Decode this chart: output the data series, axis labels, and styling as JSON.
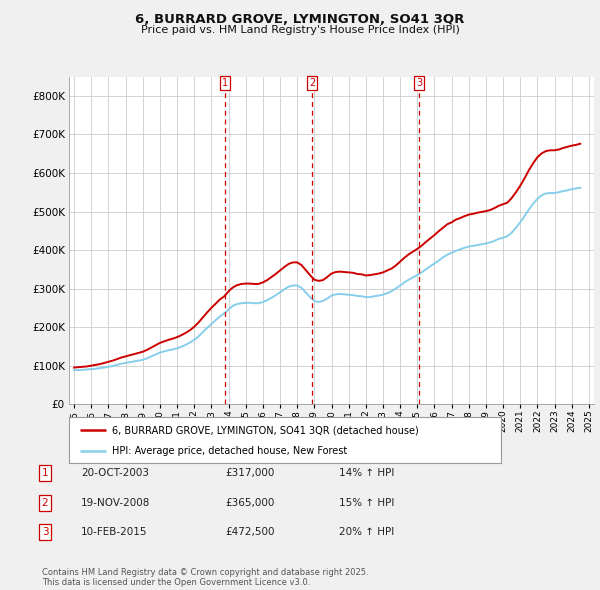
{
  "title": "6, BURRARD GROVE, LYMINGTON, SO41 3QR",
  "subtitle": "Price paid vs. HM Land Registry's House Price Index (HPI)",
  "legend_entry1": "6, BURRARD GROVE, LYMINGTON, SO41 3QR (detached house)",
  "legend_entry2": "HPI: Average price, detached house, New Forest",
  "footnote": "Contains HM Land Registry data © Crown copyright and database right 2025.\nThis data is licensed under the Open Government Licence v3.0.",
  "transactions": [
    {
      "num": 1,
      "date": "20-OCT-2003",
      "price": "£317,000",
      "change": "14% ↑ HPI",
      "year": 2003.8
    },
    {
      "num": 2,
      "date": "19-NOV-2008",
      "price": "£365,000",
      "change": "15% ↑ HPI",
      "year": 2008.88
    },
    {
      "num": 3,
      "date": "10-FEB-2015",
      "price": "£472,500",
      "change": "20% ↑ HPI",
      "year": 2015.1
    }
  ],
  "hpi_color": "#87CEEB",
  "price_color": "#CC0000",
  "background_color": "#F0F0F0",
  "plot_bg_color": "#FFFFFF",
  "grid_color": "#CCCCCC",
  "ylim": [
    0,
    850000
  ],
  "yticks": [
    0,
    100000,
    200000,
    300000,
    400000,
    500000,
    600000,
    700000,
    800000
  ],
  "xlim_left": 1994.7,
  "xlim_right": 2025.3,
  "hpi_data": {
    "years": [
      1995.0,
      1995.25,
      1995.5,
      1995.75,
      1996.0,
      1996.25,
      1996.5,
      1996.75,
      1997.0,
      1997.25,
      1997.5,
      1997.75,
      1998.0,
      1998.25,
      1998.5,
      1998.75,
      1999.0,
      1999.25,
      1999.5,
      1999.75,
      2000.0,
      2000.25,
      2000.5,
      2000.75,
      2001.0,
      2001.25,
      2001.5,
      2001.75,
      2002.0,
      2002.25,
      2002.5,
      2002.75,
      2003.0,
      2003.25,
      2003.5,
      2003.75,
      2004.0,
      2004.25,
      2004.5,
      2004.75,
      2005.0,
      2005.25,
      2005.5,
      2005.75,
      2006.0,
      2006.25,
      2006.5,
      2006.75,
      2007.0,
      2007.25,
      2007.5,
      2007.75,
      2008.0,
      2008.25,
      2008.5,
      2008.75,
      2009.0,
      2009.25,
      2009.5,
      2009.75,
      2010.0,
      2010.25,
      2010.5,
      2010.75,
      2011.0,
      2011.25,
      2011.5,
      2011.75,
      2012.0,
      2012.25,
      2012.5,
      2012.75,
      2013.0,
      2013.25,
      2013.5,
      2013.75,
      2014.0,
      2014.25,
      2014.5,
      2014.75,
      2015.0,
      2015.25,
      2015.5,
      2015.75,
      2016.0,
      2016.25,
      2016.5,
      2016.75,
      2017.0,
      2017.25,
      2017.5,
      2017.75,
      2018.0,
      2018.25,
      2018.5,
      2018.75,
      2019.0,
      2019.25,
      2019.5,
      2019.75,
      2020.0,
      2020.25,
      2020.5,
      2020.75,
      2021.0,
      2021.25,
      2021.5,
      2021.75,
      2022.0,
      2022.25,
      2022.5,
      2022.75,
      2023.0,
      2023.25,
      2023.5,
      2023.75,
      2024.0,
      2024.25,
      2024.5
    ],
    "values": [
      88000,
      88500,
      89000,
      90000,
      91000,
      92000,
      93500,
      95000,
      97000,
      99000,
      102000,
      105000,
      107000,
      109000,
      111000,
      113000,
      115000,
      119000,
      124000,
      129000,
      134000,
      137000,
      140000,
      142000,
      145000,
      149000,
      154000,
      160000,
      167000,
      176000,
      187000,
      198000,
      208000,
      218000,
      228000,
      236000,
      246000,
      255000,
      260000,
      262000,
      263000,
      263000,
      262000,
      262000,
      265000,
      270000,
      276000,
      283000,
      290000,
      298000,
      305000,
      308000,
      308000,
      302000,
      290000,
      278000,
      268000,
      265000,
      268000,
      274000,
      282000,
      285000,
      286000,
      285000,
      284000,
      283000,
      281000,
      280000,
      278000,
      278000,
      280000,
      282000,
      284000,
      288000,
      293000,
      300000,
      308000,
      316000,
      323000,
      329000,
      335000,
      342000,
      350000,
      358000,
      365000,
      373000,
      381000,
      388000,
      393000,
      398000,
      402000,
      406000,
      409000,
      411000,
      413000,
      415000,
      417000,
      420000,
      424000,
      429000,
      432000,
      436000,
      445000,
      458000,
      472000,
      488000,
      505000,
      520000,
      533000,
      542000,
      547000,
      548000,
      548000,
      550000,
      553000,
      555000,
      558000,
      560000,
      562000
    ]
  },
  "price_data": {
    "years": [
      1995.0,
      1995.25,
      1995.5,
      1995.75,
      1996.0,
      1996.25,
      1996.5,
      1996.75,
      1997.0,
      1997.25,
      1997.5,
      1997.75,
      1998.0,
      1998.25,
      1998.5,
      1998.75,
      1999.0,
      1999.25,
      1999.5,
      1999.75,
      2000.0,
      2000.25,
      2000.5,
      2000.75,
      2001.0,
      2001.25,
      2001.5,
      2001.75,
      2002.0,
      2002.25,
      2002.5,
      2002.75,
      2003.0,
      2003.25,
      2003.5,
      2003.75,
      2004.0,
      2004.25,
      2004.5,
      2004.75,
      2005.0,
      2005.25,
      2005.5,
      2005.75,
      2006.0,
      2006.25,
      2006.5,
      2006.75,
      2007.0,
      2007.25,
      2007.5,
      2007.75,
      2008.0,
      2008.25,
      2008.5,
      2008.75,
      2009.0,
      2009.25,
      2009.5,
      2009.75,
      2010.0,
      2010.25,
      2010.5,
      2010.75,
      2011.0,
      2011.25,
      2011.5,
      2011.75,
      2012.0,
      2012.25,
      2012.5,
      2012.75,
      2013.0,
      2013.25,
      2013.5,
      2013.75,
      2014.0,
      2014.25,
      2014.5,
      2014.75,
      2015.0,
      2015.25,
      2015.5,
      2015.75,
      2016.0,
      2016.25,
      2016.5,
      2016.75,
      2017.0,
      2017.25,
      2017.5,
      2017.75,
      2018.0,
      2018.25,
      2018.5,
      2018.75,
      2019.0,
      2019.25,
      2019.5,
      2019.75,
      2020.0,
      2020.25,
      2020.5,
      2020.75,
      2021.0,
      2021.25,
      2021.5,
      2021.75,
      2022.0,
      2022.25,
      2022.5,
      2022.75,
      2023.0,
      2023.25,
      2023.5,
      2023.75,
      2024.0,
      2024.25,
      2024.5
    ],
    "values": [
      95000,
      96000,
      97000,
      98000,
      100000,
      102000,
      104000,
      107000,
      110000,
      113000,
      117000,
      121000,
      124000,
      127000,
      130000,
      133000,
      136000,
      141000,
      147000,
      153000,
      159000,
      163000,
      167000,
      170000,
      174000,
      179000,
      185000,
      192000,
      201000,
      212000,
      225000,
      238000,
      250000,
      261000,
      272000,
      280000,
      293000,
      303000,
      309000,
      312000,
      313000,
      313000,
      312000,
      312000,
      316000,
      322000,
      330000,
      338000,
      347000,
      356000,
      364000,
      368000,
      368000,
      361000,
      348000,
      335000,
      323000,
      320000,
      322000,
      330000,
      339000,
      343000,
      344000,
      343000,
      342000,
      341000,
      338000,
      337000,
      334000,
      335000,
      337000,
      339000,
      342000,
      347000,
      352000,
      360000,
      370000,
      380000,
      389000,
      396000,
      403000,
      411000,
      421000,
      430000,
      439000,
      449000,
      458000,
      467000,
      472000,
      479000,
      483000,
      488000,
      492000,
      494000,
      497000,
      499000,
      501000,
      504000,
      509000,
      515000,
      519000,
      523000,
      535000,
      550000,
      567000,
      586000,
      607000,
      625000,
      641000,
      651000,
      657000,
      659000,
      659000,
      661000,
      665000,
      668000,
      671000,
      673000,
      676000
    ]
  }
}
